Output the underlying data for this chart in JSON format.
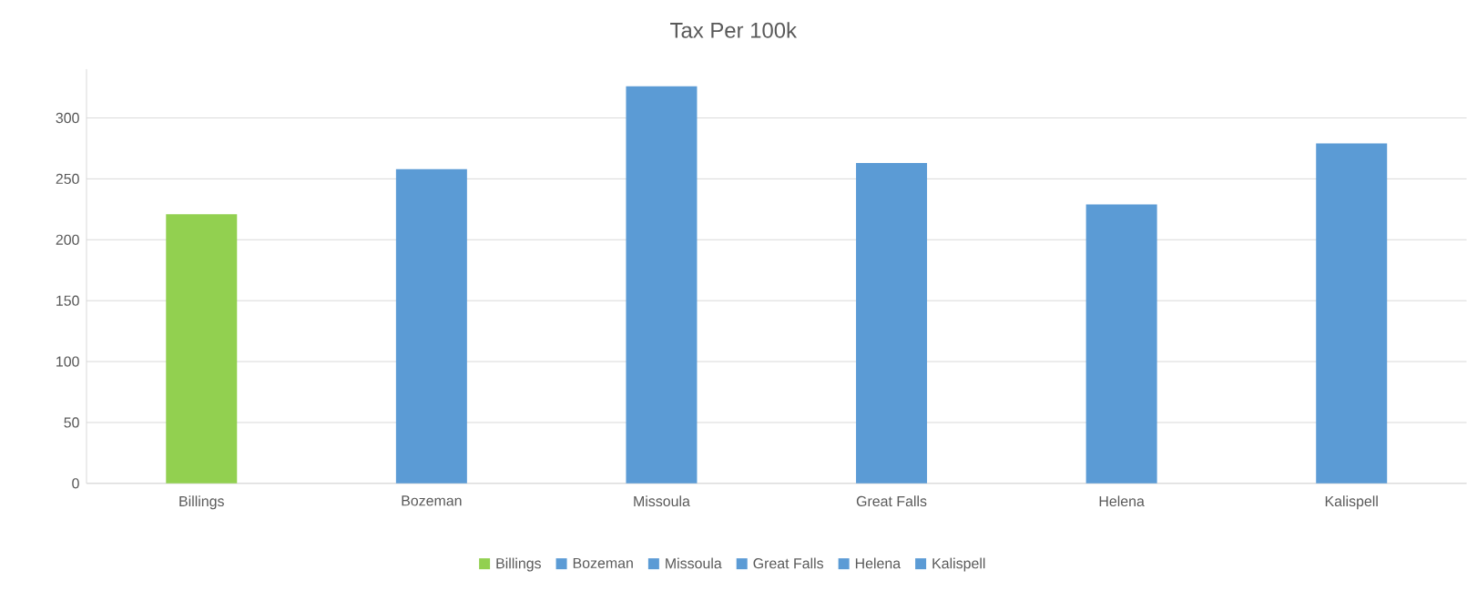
{
  "chart_data": {
    "type": "bar",
    "title": "Tax Per 100k",
    "categories": [
      "Billings",
      "Bozeman",
      "Missoula",
      "Great Falls",
      "Helena",
      "Kalispell"
    ],
    "series": [
      {
        "name": "Billings",
        "color": "#92d050",
        "values": [
          221,
          null,
          null,
          null,
          null,
          null
        ]
      },
      {
        "name": "Bozeman",
        "color": "#5b9bd5",
        "values": [
          null,
          258,
          null,
          null,
          null,
          null
        ]
      },
      {
        "name": "Missoula",
        "color": "#5b9bd5",
        "values": [
          null,
          null,
          326,
          null,
          null,
          null
        ]
      },
      {
        "name": "Great Falls",
        "color": "#5b9bd5",
        "values": [
          null,
          null,
          null,
          263,
          null,
          null
        ]
      },
      {
        "name": "Helena",
        "color": "#5b9bd5",
        "values": [
          null,
          null,
          null,
          null,
          229,
          null
        ]
      },
      {
        "name": "Kalispell",
        "color": "#5b9bd5",
        "values": [
          null,
          null,
          null,
          null,
          null,
          279
        ]
      }
    ],
    "ylim": [
      0,
      340
    ],
    "yticks": [
      0,
      50,
      100,
      150,
      200,
      250,
      300
    ],
    "grid": "y",
    "legend": "bottom"
  }
}
